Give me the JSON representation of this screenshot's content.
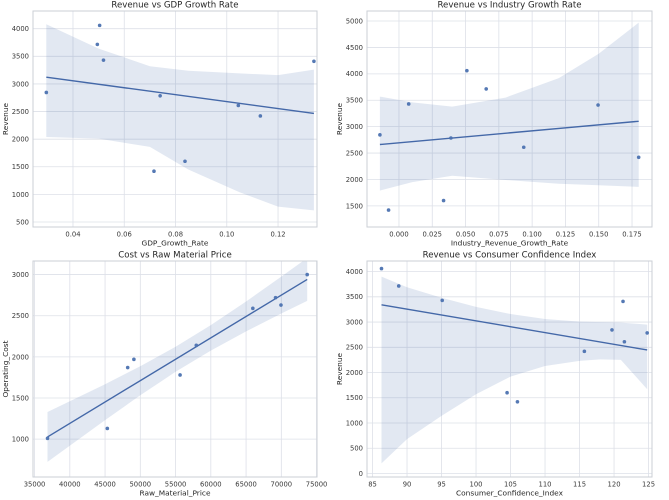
{
  "figure": {
    "background": "#ffffff",
    "accent": "#4c72b0",
    "point_color": "#4c72b0",
    "line_color": "#4468a8",
    "band_opacity": 0.16,
    "grid_color": "#dde0e8",
    "border_color": "#cbcfd6",
    "text_color": "#262626"
  },
  "chart_data": [
    {
      "id": "revenue-vs-gdp-growth-rate",
      "type": "scatter",
      "title": "Revenue vs GDP Growth Rate",
      "xlabel": "GDP_Growth_Rate",
      "ylabel": "Revenue",
      "points": {
        "x": [
          0.0296,
          0.0495,
          0.0504,
          0.0519,
          0.0716,
          0.074,
          0.0837,
          0.1045,
          0.1131,
          0.134
        ],
        "y": [
          2845,
          3715,
          4060,
          3430,
          1420,
          2785,
          1600,
          2610,
          2420,
          3410
        ]
      },
      "trend": {
        "x": [
          0.0296,
          0.134
        ],
        "y": [
          3122,
          2466
        ]
      },
      "band": {
        "x": [
          0.0296,
          0.05,
          0.07,
          0.085,
          0.105,
          0.12,
          0.134
        ],
        "upper": [
          4080,
          3640,
          3320,
          3240,
          3190,
          3160,
          3260
        ],
        "lower": [
          2040,
          2010,
          1860,
          1450,
          1040,
          780,
          710
        ]
      },
      "xlim": [
        0.0244,
        0.1352
      ],
      "ylim": [
        410,
        4320
      ],
      "xticks": [
        0.04,
        0.06,
        0.08,
        0.1,
        0.12
      ],
      "xtick_labels": [
        "0.04",
        "0.06",
        "0.08",
        "0.10",
        "0.12"
      ],
      "yticks": [
        500,
        1000,
        1500,
        2000,
        2500,
        3000,
        3500,
        4000
      ],
      "ytick_labels": [
        "500",
        "1000",
        "1500",
        "2000",
        "2500",
        "3000",
        "3500",
        "4000"
      ],
      "grid": true,
      "legend": null
    },
    {
      "id": "revenue-vs-industry-growth-rate",
      "type": "scatter",
      "title": "Revenue vs Industry Growth Rate",
      "xlabel": "Industry_Revenue_Growth_Rate",
      "ylabel": "Revenue",
      "points": {
        "x": [
          -0.0143,
          -0.0078,
          0.0073,
          0.0335,
          0.039,
          0.051,
          0.0655,
          0.0937,
          0.1495,
          0.18
        ],
        "y": [
          2845,
          1420,
          3430,
          1600,
          2785,
          4060,
          3715,
          2610,
          3410,
          2420
        ]
      },
      "trend": {
        "x": [
          -0.0143,
          0.18
        ],
        "y": [
          2662,
          3102
        ]
      },
      "band": {
        "x": [
          -0.0143,
          0.01,
          0.04,
          0.08,
          0.12,
          0.15,
          0.18
        ],
        "upper": [
          3570,
          3460,
          3380,
          3550,
          3920,
          4380,
          4970
        ],
        "lower": [
          1790,
          1950,
          2070,
          1990,
          1920,
          1890,
          1860
        ]
      },
      "xlim": [
        -0.024,
        0.19
      ],
      "ylim": [
        1100,
        5190
      ],
      "xticks": [
        0.0,
        0.025,
        0.05,
        0.075,
        0.1,
        0.125,
        0.15,
        0.175
      ],
      "xtick_labels": [
        "0.000",
        "0.025",
        "0.050",
        "0.075",
        "0.100",
        "0.125",
        "0.150",
        "0.175"
      ],
      "yticks": [
        1500,
        2000,
        2500,
        3000,
        3500,
        4000,
        4500,
        5000
      ],
      "ytick_labels": [
        "1500",
        "2000",
        "2500",
        "3000",
        "3500",
        "4000",
        "4500",
        "5000"
      ],
      "grid": true,
      "legend": null
    },
    {
      "id": "cost-vs-raw-material-price",
      "type": "scatter",
      "title": "Cost vs Raw Material Price",
      "xlabel": "Raw_Material_Price",
      "ylabel": "Operating_Cost",
      "points": {
        "x": [
          36840,
          45320,
          48210,
          49090,
          55640,
          57940,
          65960,
          69180,
          69950,
          73670
        ],
        "y": [
          1010,
          1130,
          1870,
          1970,
          1780,
          2140,
          2590,
          2720,
          2630,
          3000
        ]
      },
      "trend": {
        "x": [
          36840,
          73670
        ],
        "y": [
          1027,
          2941
        ]
      },
      "band": {
        "x": [
          36840,
          45000,
          50000,
          55000,
          60000,
          65000,
          70000,
          73670
        ],
        "upper": [
          1330,
          1668,
          1887,
          2124,
          2386,
          2673,
          2975,
          3202
        ],
        "lower": [
          724,
          1232,
          1533,
          1818,
          2076,
          2309,
          2527,
          2680
        ]
      },
      "xlim": [
        34780,
        75060
      ],
      "ylim": [
        540,
        3165
      ],
      "xticks": [
        35000,
        40000,
        45000,
        50000,
        55000,
        60000,
        65000,
        70000,
        75000
      ],
      "xtick_labels": [
        "35000",
        "40000",
        "45000",
        "50000",
        "55000",
        "60000",
        "65000",
        "70000",
        "75000"
      ],
      "yticks": [
        1000,
        1500,
        2000,
        2500,
        3000
      ],
      "ytick_labels": [
        "1000",
        "1500",
        "2000",
        "2500",
        "3000"
      ],
      "grid": true,
      "legend": null
    },
    {
      "id": "revenue-vs-consumer-confidence-index",
      "type": "scatter",
      "title": "Revenue vs Consumer Confidence Index",
      "xlabel": "Consumer_Confidence_Index",
      "ylabel": "Revenue",
      "points": {
        "x": [
          86.3,
          88.8,
          95.1,
          104.5,
          106.0,
          115.7,
          119.7,
          121.3,
          121.5,
          124.8
        ],
        "y": [
          4060,
          3715,
          3430,
          1600,
          1420,
          2420,
          2845,
          3410,
          2610,
          2785
        ]
      },
      "trend": {
        "x": [
          86.3,
          124.8
        ],
        "y": [
          3343,
          2447
        ]
      },
      "band": {
        "x": [
          86.3,
          90,
          95,
          100,
          105,
          110,
          115,
          118,
          121,
          124.8
        ],
        "upper": [
          3900,
          3690,
          3480,
          3300,
          3160,
          3060,
          3010,
          3000,
          2990,
          2950
        ],
        "lower": [
          200,
          680,
          1140,
          1570,
          1920,
          2130,
          2230,
          2260,
          2250,
          1670
        ]
      },
      "xlim": [
        84.2,
        125.5
      ],
      "ylim": [
        -70,
        4210
      ],
      "xticks": [
        85,
        90,
        95,
        100,
        105,
        110,
        115,
        120,
        125
      ],
      "xtick_labels": [
        "85",
        "90",
        "95",
        "100",
        "105",
        "110",
        "115",
        "120",
        "125"
      ],
      "yticks": [
        0,
        500,
        1000,
        1500,
        2000,
        2500,
        3000,
        3500,
        4000
      ],
      "ytick_labels": [
        "0",
        "500",
        "1000",
        "1500",
        "2000",
        "2500",
        "3000",
        "3500",
        "4000"
      ],
      "grid": true,
      "legend": null
    }
  ]
}
